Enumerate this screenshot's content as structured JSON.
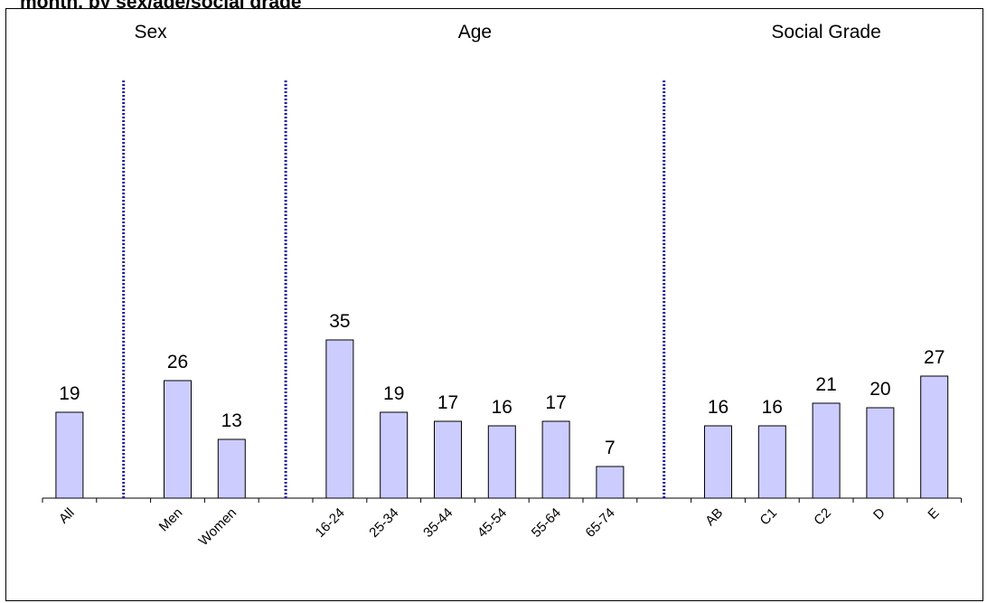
{
  "title": "month, by sex/age/social grade",
  "chart_data": {
    "type": "bar",
    "groups": [
      {
        "name": "Sex",
        "categories": [
          "All",
          "Men",
          "Women"
        ],
        "values": [
          19,
          26,
          13
        ]
      },
      {
        "name": "Age",
        "categories": [
          "16-24",
          "25-34",
          "35-44",
          "45-54",
          "55-64",
          "65-74"
        ],
        "values": [
          35,
          19,
          17,
          16,
          17,
          7
        ]
      },
      {
        "name": "Social Grade",
        "categories": [
          "AB",
          "C1",
          "C2",
          "D",
          "E"
        ],
        "values": [
          16,
          16,
          21,
          20,
          27
        ]
      }
    ],
    "categories": [
      "All",
      "Men",
      "Women",
      "16-24",
      "25-34",
      "35-44",
      "45-54",
      "55-64",
      "65-74",
      "AB",
      "C1",
      "C2",
      "D",
      "E"
    ],
    "values": [
      19,
      26,
      13,
      35,
      19,
      17,
      16,
      17,
      7,
      16,
      16,
      21,
      20,
      27
    ],
    "ylim": [
      0,
      110
    ],
    "grid": false,
    "legend": "none",
    "bar_color": "#ccccff",
    "divider_color": "#1f1fa0"
  }
}
